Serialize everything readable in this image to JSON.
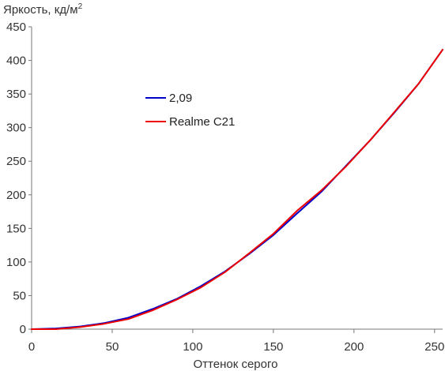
{
  "chart_data": {
    "type": "line",
    "title": "",
    "ylabel": "Яркость, кд/м",
    "ylabel_superscript": "2",
    "xlabel": "Оттенок серого",
    "xlim": [
      0,
      255
    ],
    "ylim": [
      0,
      450
    ],
    "xticks": [
      0,
      50,
      100,
      150,
      200,
      250
    ],
    "yticks": [
      0,
      50,
      100,
      150,
      200,
      250,
      300,
      350,
      400,
      450
    ],
    "grid": false,
    "legend_position": "upper-left",
    "series": [
      {
        "name": "2,09",
        "color": "#0000cc",
        "x": [
          0,
          15,
          30,
          45,
          60,
          75,
          90,
          105,
          120,
          135,
          150,
          165,
          180,
          195,
          210,
          225,
          240,
          255
        ],
        "y": [
          0,
          1,
          4,
          9,
          17,
          30,
          45,
          64,
          86,
          112,
          140,
          173,
          205,
          243,
          281,
          322,
          365,
          416
        ]
      },
      {
        "name": "Realme C21",
        "color": "#ee0000",
        "x": [
          0,
          15,
          30,
          45,
          60,
          75,
          90,
          105,
          120,
          135,
          150,
          165,
          180,
          195,
          210,
          225,
          240,
          255
        ],
        "y": [
          0,
          0,
          3,
          8,
          15,
          28,
          44,
          62,
          85,
          113,
          142,
          177,
          207,
          242,
          281,
          323,
          365,
          416
        ]
      }
    ]
  }
}
